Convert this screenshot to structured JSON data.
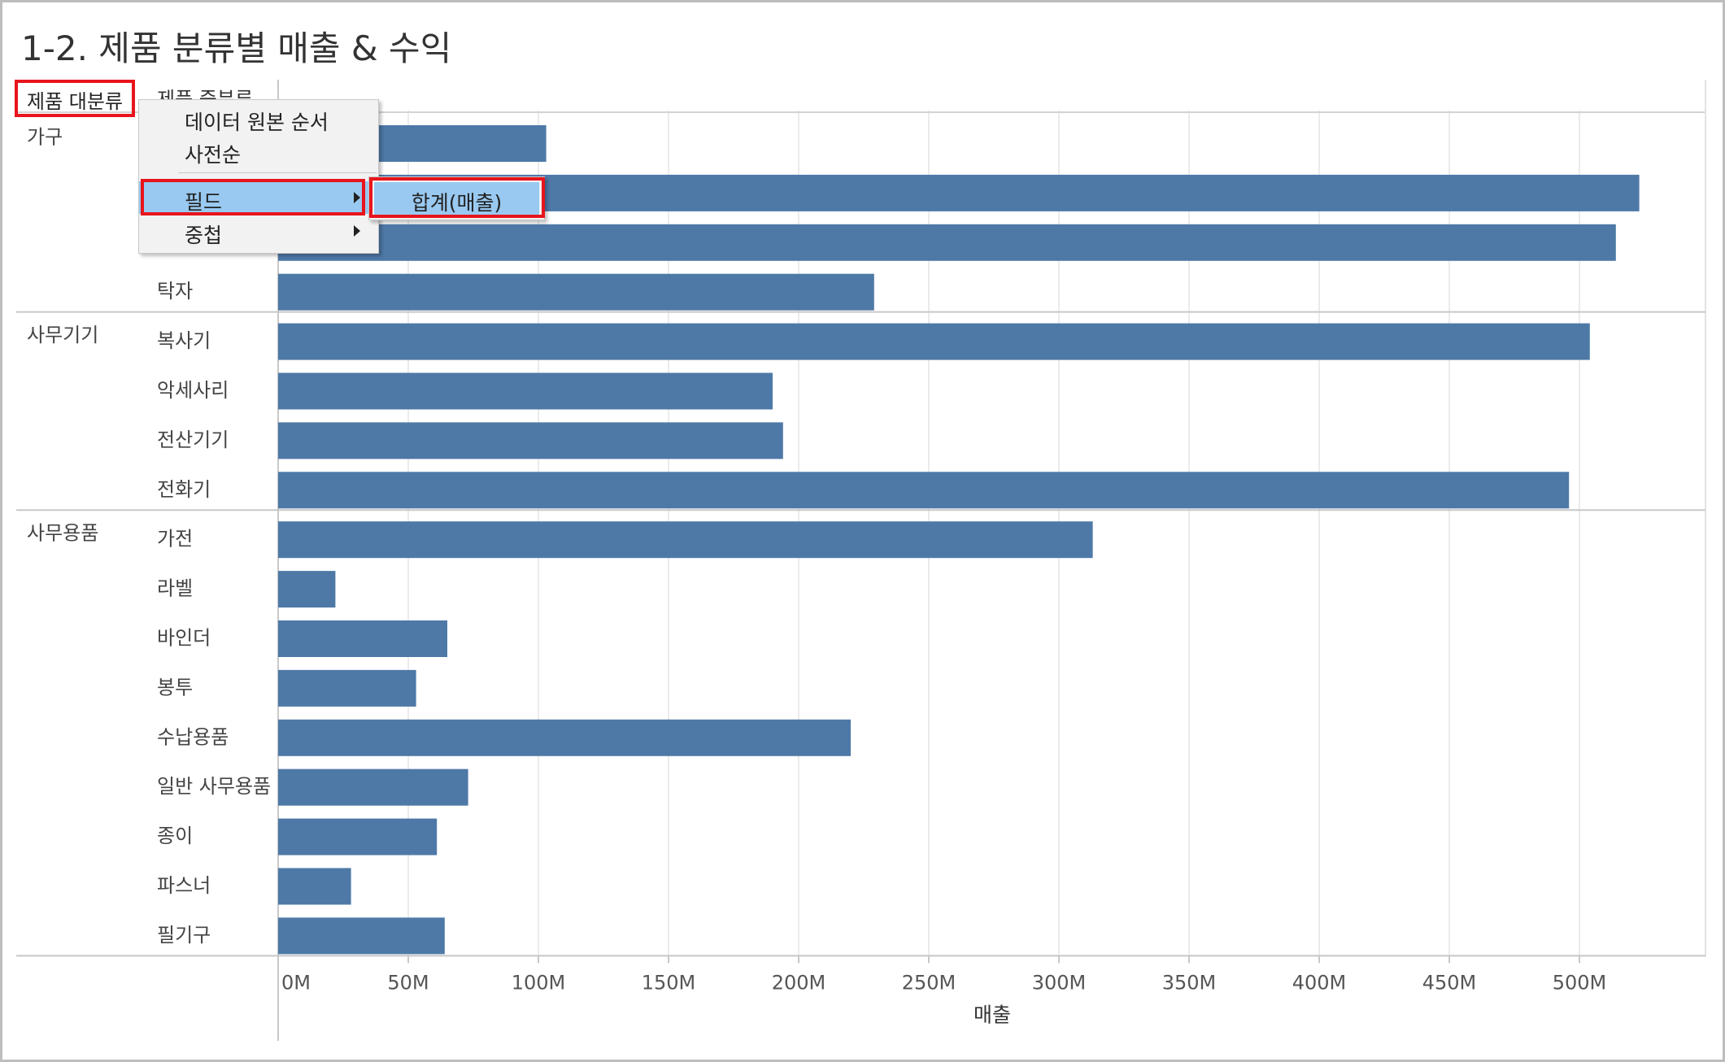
{
  "title": "1-2. 제품 분류별 매출 & 수익",
  "header": {
    "category_pill": "제품 대분류",
    "subcategory_pill": "제품 중분류"
  },
  "context_menu": {
    "items": [
      "데이터 원본 순서",
      "사전순",
      "필드",
      "중첩"
    ],
    "submenu_item": "합계(매출)"
  },
  "colors": {
    "bar": "#4e79a7",
    "highlight": "#99c9f0",
    "annotation_border": "#e8141c"
  },
  "icons": [
    "submenu-arrow-icon"
  ],
  "chart_data": {
    "type": "bar",
    "orientation": "horizontal",
    "title": "1-2. 제품 분류별 매출 & 수익",
    "xlabel": "매출",
    "ylabel": "",
    "xlim": [
      0,
      550000000
    ],
    "x_ticks": [
      0,
      50000000,
      100000000,
      150000000,
      200000000,
      250000000,
      300000000,
      350000000,
      400000000,
      450000000,
      500000000
    ],
    "x_tick_labels": [
      "0M",
      "50M",
      "100M",
      "150M",
      "200M",
      "250M",
      "300M",
      "350M",
      "400M",
      "450M",
      "500M"
    ],
    "grid": true,
    "groups": [
      {
        "name": "가구",
        "items": [
          {
            "label": "",
            "value": 103000000
          },
          {
            "label": "",
            "value": 523000000
          },
          {
            "label": "",
            "value": 514000000
          },
          {
            "label": "탁자",
            "value": 229000000
          }
        ]
      },
      {
        "name": "사무기기",
        "items": [
          {
            "label": "복사기",
            "value": 504000000
          },
          {
            "label": "악세사리",
            "value": 190000000
          },
          {
            "label": "전산기기",
            "value": 194000000
          },
          {
            "label": "전화기",
            "value": 496000000
          }
        ]
      },
      {
        "name": "사무용품",
        "items": [
          {
            "label": "가전",
            "value": 313000000
          },
          {
            "label": "라벨",
            "value": 22000000
          },
          {
            "label": "바인더",
            "value": 65000000
          },
          {
            "label": "봉투",
            "value": 53000000
          },
          {
            "label": "수납용품",
            "value": 220000000
          },
          {
            "label": "일반 사무용품",
            "value": 73000000
          },
          {
            "label": "종이",
            "value": 61000000
          },
          {
            "label": "파스너",
            "value": 28000000
          },
          {
            "label": "필기구",
            "value": 64000000
          }
        ]
      }
    ]
  }
}
